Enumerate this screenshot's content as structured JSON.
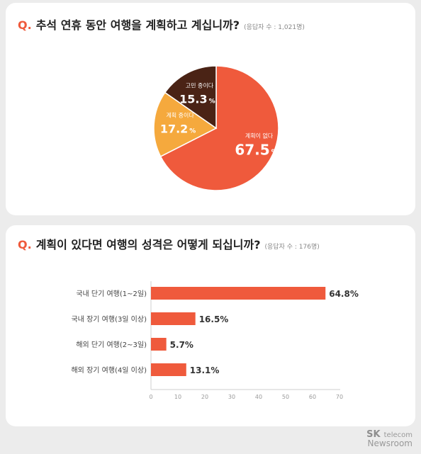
{
  "chart_data": [
    {
      "type": "pie",
      "title_mark": "Q.",
      "title": "추석 연휴 동안 여행을 계획하고 계십니까?",
      "respondents": "(응답자 수 : 1,021명)",
      "slices": [
        {
          "label": "계획이 없다",
          "value": 67.5,
          "display": "67.5",
          "unit": "%",
          "color": "#ef5a3c"
        },
        {
          "label": "계획 중이다",
          "value": 17.2,
          "display": "17.2",
          "unit": "%",
          "color": "#f5a93d"
        },
        {
          "label": "고민 중이다",
          "value": 15.3,
          "display": "15.3",
          "unit": "%",
          "color": "#4a2315"
        }
      ]
    },
    {
      "type": "bar",
      "orientation": "horizontal",
      "title_mark": "Q.",
      "title": "계획이 있다면 여행의 성격은 어떻게 되십니까?",
      "respondents": "(응답자 수 : 176명)",
      "categories": [
        "국내 단기 여행(1~2일)",
        "국내 장기 여행(3일 이상)",
        "해외 단기 여행(2~3일)",
        "해외 장기 여행(4일 이상)"
      ],
      "values": [
        64.8,
        16.5,
        5.7,
        13.1
      ],
      "value_labels": [
        "64.8%",
        "16.5%",
        "5.7%",
        "13.1%"
      ],
      "xlim": [
        0,
        70
      ],
      "ticks": [
        "0",
        "10",
        "20",
        "30",
        "40",
        "50",
        "60",
        "70"
      ],
      "bar_color": "#ef5a3c"
    }
  ],
  "footer": {
    "brand": "SK",
    "brand_sub": "telecom",
    "newsroom": "Newsroom"
  }
}
